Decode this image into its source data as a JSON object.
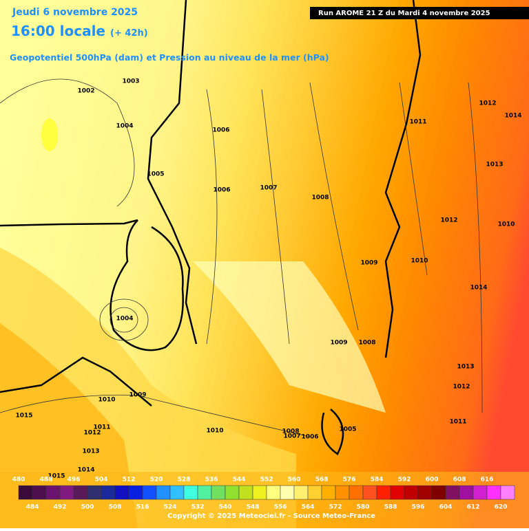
{
  "header": {
    "date": "Jeudi 6 novembre 2025",
    "time": "16:00 locale",
    "lead": "(+ 42h)",
    "subtitle": "Geopotentiel 500hPa (dam) et Pression au niveau de la mer (hPa)",
    "run": "Run AROME 21 Z du Mardi 4 novembre 2025"
  },
  "isobar_labels": [
    "1002",
    "1003",
    "1004",
    "1006",
    "1005",
    "1006",
    "1007",
    "1008",
    "1011",
    "1012",
    "1014",
    "1013",
    "1012",
    "1010",
    "1009",
    "1010",
    "1014",
    "1004",
    "1009",
    "1008",
    "1013",
    "1012",
    "1011",
    "1010",
    "1009",
    "1015",
    "1011",
    "1012",
    "1010",
    "1008",
    "1007",
    "1006",
    "1005",
    "1013",
    "1014",
    "1015"
  ],
  "scale": {
    "top_labels": [
      480,
      488,
      496,
      504,
      512,
      520,
      528,
      536,
      544,
      552,
      560,
      568,
      576,
      584,
      592,
      600,
      608,
      616
    ],
    "bottom_labels": [
      484,
      492,
      500,
      508,
      516,
      524,
      532,
      540,
      548,
      556,
      564,
      572,
      580,
      588,
      596,
      604,
      612,
      620
    ],
    "colors": [
      "#3a0a3a",
      "#4d0f4d",
      "#6a1470",
      "#801a80",
      "#5a1a5a",
      "#303070",
      "#1a2a9a",
      "#1010c0",
      "#0a20e0",
      "#1050ff",
      "#2090ff",
      "#30c0ff",
      "#40ffe0",
      "#50f0a0",
      "#70e060",
      "#90e030",
      "#c0e020",
      "#f0f020",
      "#ffff80",
      "#ffffb0",
      "#fff070",
      "#ffd030",
      "#ffb000",
      "#ff9000",
      "#ff7000",
      "#ff5020",
      "#ff2000",
      "#e00000",
      "#c00000",
      "#a00000",
      "#800000",
      "#801060",
      "#a010a0",
      "#d020d0",
      "#ff30ff",
      "#ff80ff"
    ]
  },
  "copyright": "Copyright © 2025 Meteociel.fr - Source Meteo-France"
}
